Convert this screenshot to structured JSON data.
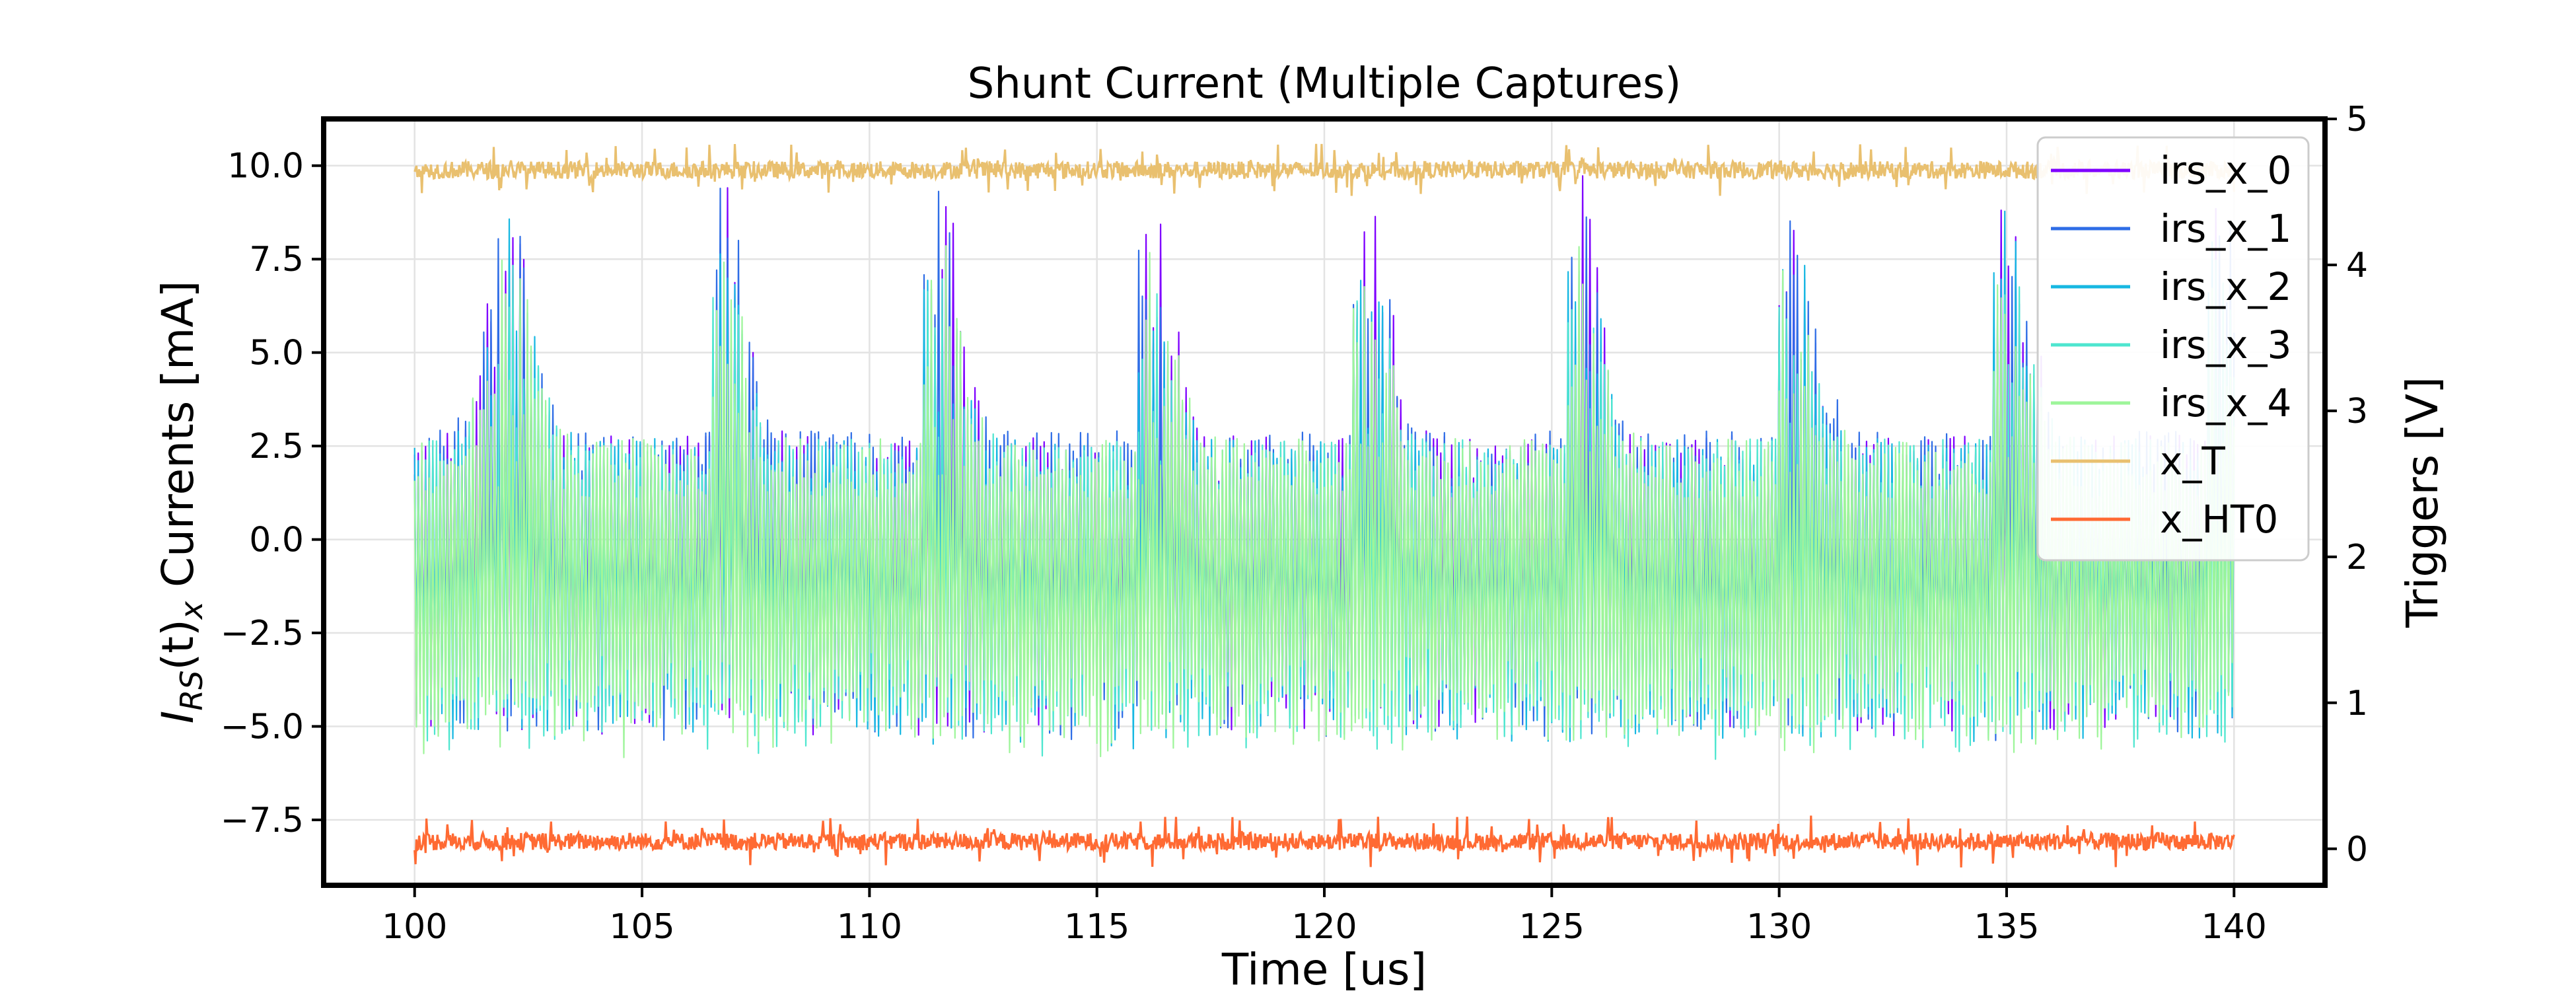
{
  "chart_data": {
    "type": "line",
    "title": "Shunt Current (Multiple Captures)",
    "xlabel": "Time [us]",
    "ylabel": {
      "main": "I",
      "sub1": "RS",
      "paren": "(t)",
      "sub2": "x",
      "rest": " Currents [mA]"
    },
    "ylabel_right": "Triggers [V]",
    "xlim": [
      98,
      142
    ],
    "ylim": [
      -9.25,
      11.25
    ],
    "ylim_right": [
      -0.25,
      5.0
    ],
    "x_ticks": [
      100,
      105,
      110,
      115,
      120,
      125,
      130,
      135,
      140
    ],
    "y_ticks": [
      -7.5,
      -5.0,
      -2.5,
      0.0,
      2.5,
      5.0,
      7.5,
      10.0
    ],
    "y_tick_labels": [
      "−7.5",
      "−5.0",
      "−2.5",
      "0.0",
      "2.5",
      "5.0",
      "7.5",
      "10.0"
    ],
    "y_right_ticks": [
      0,
      1,
      2,
      3,
      4,
      5
    ],
    "grid": true,
    "legend_position": "top-right",
    "x_range": [
      100,
      140
    ],
    "sample_step_us": 0.04,
    "series": [
      {
        "name": "irs_x_0",
        "axis": "left",
        "color": "#7f00ff",
        "amplitude": 3.4,
        "offset": -0.6,
        "peak": 10.2
      },
      {
        "name": "irs_x_1",
        "axis": "left",
        "color": "#2e6de6",
        "amplitude": 3.5,
        "offset": -0.6,
        "peak": 9.6
      },
      {
        "name": "irs_x_2",
        "axis": "left",
        "color": "#17b8e2",
        "amplitude": 3.5,
        "offset": -0.8,
        "peak": 9.0
      },
      {
        "name": "irs_x_3",
        "axis": "left",
        "color": "#4ee6cf",
        "amplitude": 3.6,
        "offset": -0.9,
        "peak": 8.5
      },
      {
        "name": "irs_x_4",
        "axis": "left",
        "color": "#9ef59a",
        "amplitude": 3.6,
        "offset": -0.9,
        "peak": 8.5
      },
      {
        "name": "x_T",
        "axis": "right",
        "color": "#e9c06f",
        "level": 4.65
      },
      {
        "name": "x_HT0",
        "axis": "right",
        "color": "#ff6a33",
        "level": 0.05
      }
    ]
  }
}
